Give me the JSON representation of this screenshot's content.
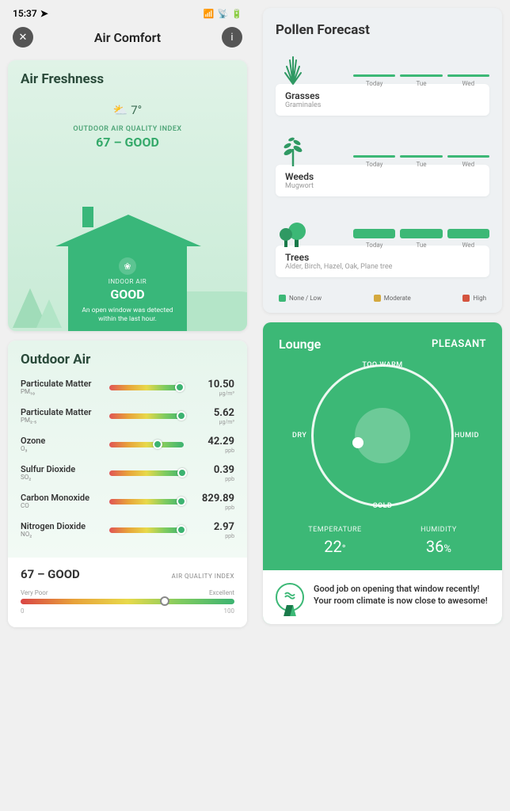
{
  "status": {
    "time": "15:37",
    "signal": "▪▮▮",
    "wifi": "◈",
    "battery": "▭"
  },
  "header": {
    "title": "Air Comfort"
  },
  "freshness": {
    "title": "Air Freshness",
    "temp": "7°",
    "aqi_label": "OUTDOOR AIR QUALITY INDEX",
    "aqi_value": "67 – GOOD",
    "indoor_label": "INDOOR AIR",
    "indoor_status": "GOOD",
    "indoor_desc": "An open window was detected within the last hour.",
    "colors": {
      "bg_top": "#e0f3e7",
      "bg_bottom": "#c8ebd6",
      "house": "#39b77a",
      "text_accent": "#34a96a"
    }
  },
  "outdoor": {
    "title": "Outdoor Air",
    "pollutants": [
      {
        "name": "Particulate Matter",
        "sub": "PM₁₀",
        "value": "10.50",
        "unit": "μg/m³",
        "dot_pct": 88
      },
      {
        "name": "Particulate Matter",
        "sub": "PM₂.₅",
        "value": "5.62",
        "unit": "μg/m³",
        "dot_pct": 90
      },
      {
        "name": "Ozone",
        "sub": "O₃",
        "value": "42.29",
        "unit": "ppb",
        "dot_pct": 58
      },
      {
        "name": "Sulfur Dioxide",
        "sub": "SO₂",
        "value": "0.39",
        "unit": "ppb",
        "dot_pct": 92
      },
      {
        "name": "Carbon Monoxide",
        "sub": "CO",
        "value": "829.89",
        "unit": "ppb",
        "dot_pct": 90
      },
      {
        "name": "Nitrogen Dioxide",
        "sub": "NO₂",
        "value": "2.97",
        "unit": "ppb",
        "dot_pct": 90
      }
    ],
    "summary": {
      "value": "67 – GOOD",
      "label": "AIR QUALITY INDEX",
      "low": "Very Poor",
      "high": "Excellent",
      "min": "0",
      "max": "100",
      "dot_pct": 65
    }
  },
  "pollen": {
    "title": "Pollen Forecast",
    "days": [
      "Today",
      "Tue",
      "Wed"
    ],
    "items": [
      {
        "name": "Grasses",
        "species": "Graminales",
        "style": "thin",
        "bars": [
          "#3cb876",
          "#3cb876",
          "#3cb876"
        ]
      },
      {
        "name": "Weeds",
        "species": "Mugwort",
        "style": "thin",
        "bars": [
          "#3cb876",
          "#3cb876",
          "#3cb876"
        ]
      },
      {
        "name": "Trees",
        "species": "Alder, Birch, Hazel, Oak, Plane tree",
        "style": "thick",
        "bars": [
          "#3cb876",
          "#3cb876",
          "#3cb876"
        ]
      }
    ],
    "legend": [
      {
        "label": "None / Low",
        "color": "#3cb876"
      },
      {
        "label": "Moderate",
        "color": "#d4a93f"
      },
      {
        "label": "High",
        "color": "#d4543f"
      }
    ]
  },
  "room": {
    "name": "Lounge",
    "status": "PLEASANT",
    "dial": {
      "top": "TOO WARM",
      "bottom": "COLD",
      "left": "DRY",
      "right": "HUMID"
    },
    "temperature": {
      "label": "TEMPERATURE",
      "value": "22",
      "unit": "°"
    },
    "humidity": {
      "label": "HUMIDITY",
      "value": "36",
      "unit": "%"
    },
    "message": "Good job on opening that window recently! Your room climate is now close to awesome!",
    "bg_color": "#3cb876"
  }
}
